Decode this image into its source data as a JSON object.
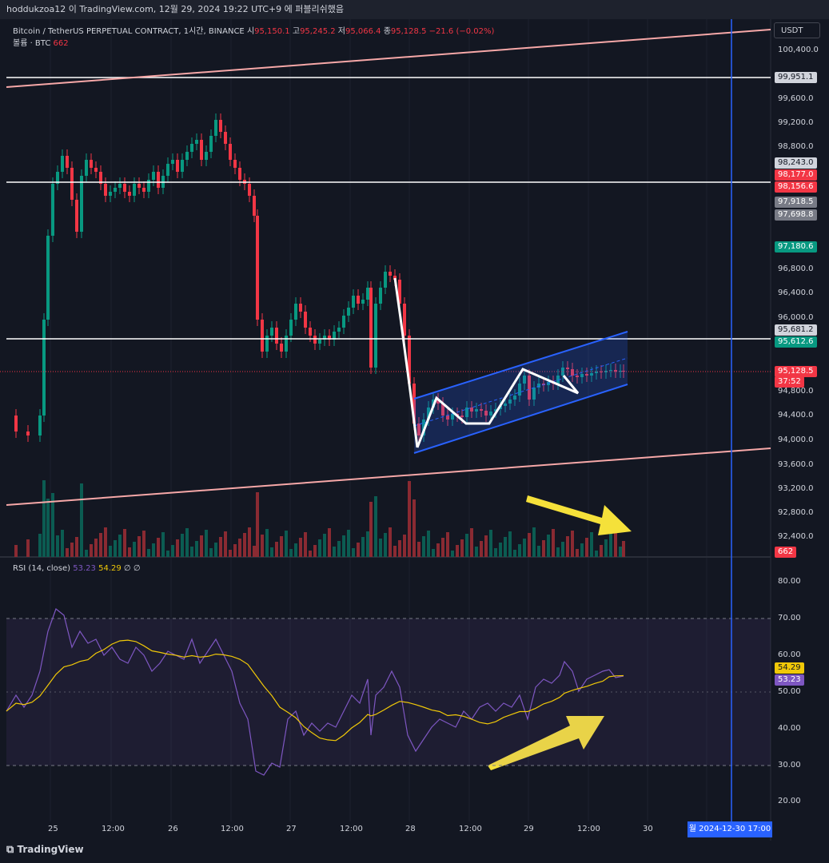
{
  "topbar": {
    "text": "hoddukzoa12 이 TradingView.com, 12월 29, 2024 19:22 UTC+9 에 퍼블리쉬했음"
  },
  "header": {
    "symbol": "Bitcoin / TetherUS PERPETUAL CONTRACT, 1시간, BINANCE",
    "o_label": "시",
    "o_value": "95,150.1",
    "h_label": "고",
    "h_value": "95,245.2",
    "l_label": "저",
    "l_value": "95,066.4",
    "c_label": "종",
    "c_value": "95,128.5",
    "change": "−21.6 (−0.02%)",
    "volume_label": "볼륨 · BTC",
    "volume_value": "662"
  },
  "currency": "USDT",
  "price_axis": [
    "100,400.0",
    "99,600.0",
    "99,200.0",
    "98,800.0",
    "96,800.0",
    "96,400.0",
    "96,000.0",
    "94,800.0",
    "94,400.0",
    "94,000.0",
    "93,600.0",
    "93,200.0",
    "92,800.0",
    "92,400.0"
  ],
  "price_tags": [
    {
      "text": "99,951.1",
      "bg": "#d1d4dc",
      "fg": "#131722"
    },
    {
      "text": "98,243.0",
      "bg": "#d1d4dc",
      "fg": "#131722"
    },
    {
      "text": "98,177.0",
      "bg": "#f23645",
      "fg": "#ffffff"
    },
    {
      "text": "98,156.6",
      "bg": "#f23645",
      "fg": "#ffffff"
    },
    {
      "text": "97,918.5",
      "bg": "#787b86",
      "fg": "#ffffff"
    },
    {
      "text": "97,698.8",
      "bg": "#787b86",
      "fg": "#ffffff"
    },
    {
      "text": "97,180.6",
      "bg": "#089981",
      "fg": "#ffffff"
    },
    {
      "text": "95,681.2",
      "bg": "#d1d4dc",
      "fg": "#131722"
    },
    {
      "text": "95,612.6",
      "bg": "#089981",
      "fg": "#ffffff"
    },
    {
      "text": "95,128.5",
      "bg": "#f23645",
      "fg": "#ffffff"
    },
    {
      "text": "37:52",
      "bg": "#f23645",
      "fg": "#ffffff"
    },
    {
      "text": "662",
      "bg": "#f23645",
      "fg": "#ffffff"
    }
  ],
  "rsi": {
    "label": "RSI (14, close)",
    "value": "53.23",
    "ma_value": "54.29",
    "extra1": "∅",
    "extra2": "∅",
    "axis": [
      "80.00",
      "70.00",
      "60.00",
      "50.00",
      "40.00",
      "30.00",
      "20.00"
    ],
    "tag_ma": "54.29",
    "tag_rsi": "53.23"
  },
  "time_axis": [
    "25",
    "12:00",
    "26",
    "12:00",
    "27",
    "12:00",
    "28",
    "12:00",
    "29",
    "12:00",
    "30"
  ],
  "time_cursor": "월  2024-12-30   17:00",
  "brand": "TradingView",
  "colors": {
    "up": "#089981",
    "down": "#f23645",
    "channel": "#2962ff",
    "trend": "#f7a8a8",
    "rsi": "#7e57c2",
    "rsi_ma": "#f0c808",
    "arrow": "#f5e13a"
  }
}
